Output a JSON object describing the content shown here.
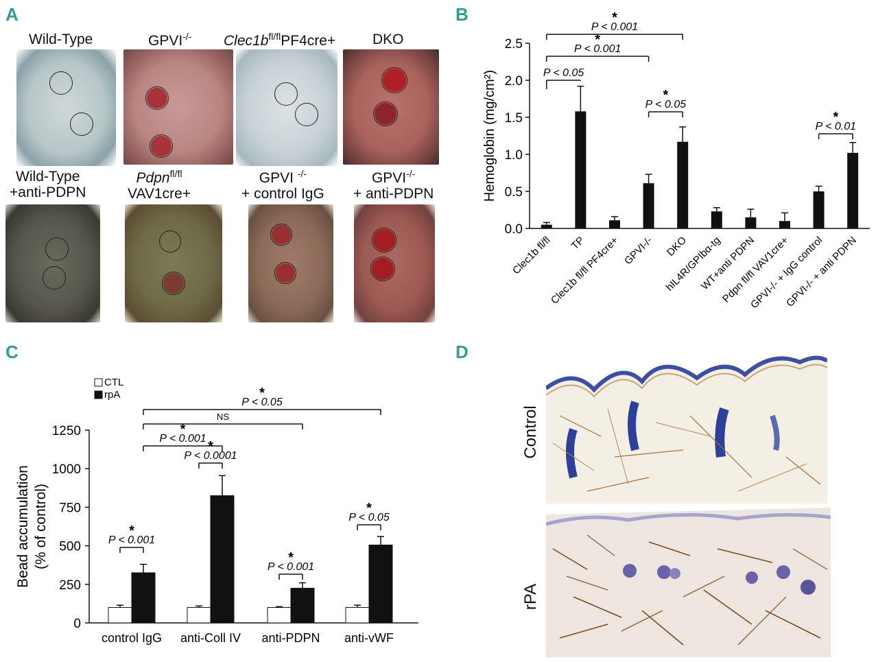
{
  "panels": {
    "a": "A",
    "b": "B",
    "c": "C",
    "d": "D"
  },
  "panel_a": {
    "photos": [
      {
        "label_main": "Wild-Type",
        "label_sup": "",
        "label_after": ""
      },
      {
        "label_main": "GPVI",
        "label_sup": "-/-",
        "label_after": ""
      },
      {
        "label_main": "Clec1b",
        "label_sup": "fl/fl",
        "label_after": "PF4cre+"
      },
      {
        "label_main": "DKO",
        "label_sup": "",
        "label_after": ""
      },
      {
        "label_main": "Wild-Type",
        "label_sup": "",
        "label_after": "",
        "label_line2": "+anti-PDPN"
      },
      {
        "label_main": "Pdpn",
        "label_sup": "fl/fl",
        "label_after": "",
        "label_line2": "VAV1cre+"
      },
      {
        "label_main": "GPVI ",
        "label_sup": "-/-",
        "label_after": "",
        "label_line2": "+ control IgG"
      },
      {
        "label_main": "GPVI",
        "label_sup": "-/-",
        "label_after": "",
        "label_line2": "+ anti-PDPN"
      }
    ]
  },
  "panel_d": {
    "row1_label": "Control",
    "row2_label": "rPA"
  },
  "chart_data": [
    {
      "id": "B",
      "type": "bar",
      "ylabel": "Hemoglobin (mg/cm²)",
      "ylim": [
        0,
        2.5
      ],
      "yticks": [
        "0.0",
        "0.5",
        "1.0",
        "1.5",
        "2.0",
        "2.5"
      ],
      "categories": [
        "Clec1b fl/fl",
        "TP",
        "Clec1b fl/fl PF4cre+",
        "GPVI-/-",
        "DKO",
        "hIL4R/GPIbα-tg",
        "WT+anti PDPN",
        "Pdpn fl/fl VAV1cre+",
        "GPVI-/- + IgG control",
        "GPVI-/- + anti PDPN"
      ],
      "values": [
        0.05,
        1.58,
        0.11,
        0.61,
        1.17,
        0.23,
        0.15,
        0.1,
        0.5,
        1.02
      ],
      "errors": [
        0.03,
        0.34,
        0.05,
        0.12,
        0.2,
        0.05,
        0.11,
        0.11,
        0.07,
        0.14
      ],
      "colors": {
        "bar": "#111111"
      },
      "annotations": [
        {
          "from": 0,
          "to": 1,
          "text": "P < 0.05",
          "star": ""
        },
        {
          "from": 0,
          "to": 3,
          "text": "P < 0.001",
          "star": "*"
        },
        {
          "from": 0,
          "to": 4,
          "text": "P < 0.001",
          "star": "*"
        },
        {
          "from": 3,
          "to": 4,
          "text": "P < 0.05",
          "star": "*"
        },
        {
          "from": 8,
          "to": 9,
          "text": "P < 0.01",
          "star": "*"
        }
      ]
    },
    {
      "id": "C",
      "type": "bar",
      "ylabel": "Bead accumulation",
      "ylabel2": "(% of control)",
      "ylim": [
        0,
        1250
      ],
      "yticks": [
        "0",
        "250",
        "500",
        "750",
        "1000",
        "1250"
      ],
      "categories": [
        "control IgG",
        "anti-Coll IV",
        "anti-PDPN",
        "anti-vWF"
      ],
      "series": [
        {
          "name": "CTL",
          "values": [
            100,
            100,
            100,
            100
          ],
          "errors": [
            15,
            10,
            5,
            15
          ],
          "color": "#ffffff"
        },
        {
          "name": "rpA",
          "values": [
            325,
            825,
            225,
            505
          ],
          "errors": [
            55,
            130,
            35,
            55
          ],
          "color": "#111111"
        }
      ],
      "annotations": [
        {
          "kind": "pair",
          "group": 0,
          "text": "P < 0.001",
          "star": "*"
        },
        {
          "kind": "pair",
          "group": 1,
          "text": "P < 0.0001",
          "star": "*"
        },
        {
          "kind": "pair",
          "group": 2,
          "text": "P < 0.001",
          "star": "*"
        },
        {
          "kind": "pair",
          "group": 3,
          "text": "P < 0.05",
          "star": "*"
        },
        {
          "kind": "span",
          "from": 0,
          "to": 1,
          "text": "P < 0.001",
          "star": "*"
        },
        {
          "kind": "span",
          "from": 0,
          "to": 2,
          "text": "NS",
          "star": ""
        },
        {
          "kind": "span",
          "from": 0,
          "to": 3,
          "text": "P < 0.05",
          "star": "*"
        }
      ]
    }
  ]
}
